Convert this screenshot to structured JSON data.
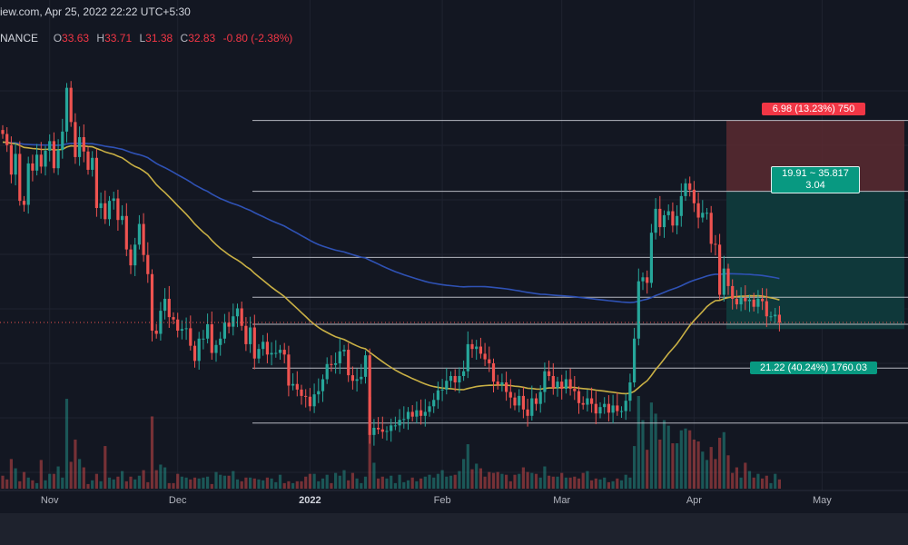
{
  "header": {
    "source_text": "iew.com, Apr 25, 2022 22:22 UTC+5:30",
    "exchange": "NANCE",
    "ohlc": {
      "open_label": "O",
      "open_value": "33.63",
      "high_label": "H",
      "high_value": "33.71",
      "low_label": "L",
      "low_value": "31.38",
      "close_label": "C",
      "close_value": "32.83",
      "change": "-0.80 (-2.38%)"
    }
  },
  "position_tool": {
    "target_label": "6.98 (13.23%) 750",
    "ratio_line1": "19.91 ~ 35.817",
    "ratio_line2": "3.04",
    "stop_label": "21.22 (40.24%) 1760.03"
  },
  "colors": {
    "background": "#131722",
    "up": "#26a69a",
    "down": "#ef5350",
    "ma_fast": "#c9b045",
    "ma_slow": "#2f52b5",
    "hline": "#d1d4dc",
    "target_zone": "#5a2a30",
    "stop_zone": "#0f3a3c",
    "grid": "#1f2330"
  },
  "chart_data": {
    "type": "candlestick",
    "x_axis_labels": [
      "Nov",
      "Dec",
      "2022",
      "Feb",
      "Mar",
      "Apr",
      "May"
    ],
    "x_axis_label_dates": [
      "2021-11-01",
      "2021-12-01",
      "2022-01-01",
      "2022-02-01",
      "2022-03-01",
      "2022-04-01",
      "2022-05-01"
    ],
    "first_candle_date": "2021-10-21",
    "last_candle_date": "2022-04-25",
    "approx_price_range": [
      15,
      60
    ],
    "last_close": 32.83,
    "closes": [
      56.5,
      55.1,
      51.4,
      54.0,
      48.1,
      47.6,
      52.8,
      51.9,
      53.9,
      52.4,
      54.4,
      55.6,
      52.2,
      54.5,
      56.8,
      62.3,
      58.0,
      53.6,
      56.1,
      54.3,
      52.0,
      53.5,
      47.2,
      47.8,
      45.8,
      48.1,
      48.4,
      45.7,
      46.2,
      42.0,
      40.0,
      42.6,
      45.2,
      41.3,
      38.9,
      31.8,
      31.4,
      34.3,
      35.8,
      33.5,
      33.2,
      31.8,
      32.0,
      32.1,
      29.9,
      28.0,
      30.8,
      30.8,
      32.6,
      29.0,
      30.0,
      30.8,
      32.8,
      32.3,
      33.6,
      34.6,
      32.4,
      30.1,
      32.2,
      28.3,
      29.5,
      30.4,
      28.8,
      29.0,
      29.0,
      29.4,
      28.8,
      24.9,
      25.1,
      24.4,
      23.6,
      23.5,
      22.3,
      23.8,
      24.2,
      25.7,
      27.6,
      27.5,
      27.7,
      29.2,
      29.4,
      26.2,
      25.5,
      25.7,
      26.0,
      28.7,
      18.7,
      19.6,
      19.4,
      19.1,
      19.2,
      19.9,
      19.9,
      20.6,
      20.7,
      21.6,
      21.0,
      21.8,
      21.1,
      21.6,
      22.3,
      23.1,
      24.3,
      24.4,
      25.5,
      26.1,
      25.3,
      26.1,
      26.7,
      30.1,
      29.5,
      29.8,
      28.9,
      28.2,
      27.7,
      25.4,
      25.0,
      25.3,
      24.1,
      23.4,
      22.4,
      23.6,
      21.9,
      21.1,
      23.3,
      22.6,
      24.1,
      26.7,
      26.1,
      24.6,
      25.4,
      24.5,
      25.7,
      24.5,
      24.2,
      22.7,
      22.5,
      23.3,
      22.6,
      21.4,
      22.2,
      22.6,
      21.5,
      22.4,
      21.7,
      21.7,
      23.0,
      25.3,
      30.8,
      38.0,
      38.5,
      37.8,
      44.1,
      47.1,
      44.8,
      46.3,
      46.8,
      45.0,
      46.2,
      48.7,
      50.3,
      49.5,
      47.8,
      46.0,
      46.6,
      46.6,
      42.7,
      42.6,
      36.3,
      39.6,
      37.4,
      35.8,
      35.1,
      35.9,
      35.5,
      35.7,
      34.8,
      35.8,
      35.5,
      33.6,
      33.6,
      33.8,
      32.8
    ],
    "volume_relative": [
      0.14,
      0.1,
      0.32,
      0.22,
      0.08,
      0.18,
      0.12,
      0.09,
      0.06,
      0.31,
      0.09,
      0.16,
      0.16,
      0.24,
      0.12,
      0.97,
      0.29,
      0.53,
      0.32,
      0.23,
      0.05,
      0.09,
      0.16,
      0.08,
      0.46,
      0.12,
      0.1,
      0.13,
      0.19,
      0.08,
      0.13,
      0.1,
      0.14,
      0.2,
      0.07,
      0.78,
      0.2,
      0.26,
      0.23,
      0.06,
      0.06,
      0.16,
      0.13,
      0.12,
      0.1,
      0.12,
      0.11,
      0.12,
      0.13,
      0.05,
      0.18,
      0.15,
      0.14,
      0.14,
      0.19,
      0.1,
      0.08,
      0.12,
      0.12,
      0.11,
      0.1,
      0.09,
      0.12,
      0.11,
      0.07,
      0.15,
      0.06,
      0.08,
      0.06,
      0.08,
      0.08,
      0.13,
      0.16,
      0.16,
      0.08,
      0.11,
      0.15,
      0.06,
      0.17,
      0.14,
      0.2,
      0.09,
      0.17,
      0.11,
      0.06,
      0.13,
      0.99,
      0.28,
      0.11,
      0.13,
      0.11,
      0.14,
      0.06,
      0.15,
      0.07,
      0.09,
      0.12,
      0.08,
      0.11,
      0.13,
      0.15,
      0.12,
      0.16,
      0.2,
      0.13,
      0.14,
      0.15,
      0.19,
      0.32,
      0.48,
      0.21,
      0.27,
      0.22,
      0.13,
      0.18,
      0.17,
      0.18,
      0.16,
      0.15,
      0.08,
      0.15,
      0.16,
      0.23,
      0.18,
      0.17,
      0.16,
      0.12,
      0.24,
      0.14,
      0.13,
      0.13,
      0.17,
      0.12,
      0.12,
      0.13,
      0.11,
      0.17,
      0.19,
      0.09,
      0.11,
      0.1,
      0.12,
      0.07,
      0.08,
      0.11,
      0.09,
      0.15,
      0.12,
      0.46,
      1.0,
      0.74,
      0.42,
      0.93,
      0.81,
      0.53,
      0.74,
      0.68,
      0.49,
      0.49,
      0.63,
      0.65,
      0.63,
      0.53,
      0.51,
      0.4,
      0.31,
      0.45,
      0.32,
      0.55,
      0.61,
      0.36,
      0.17,
      0.23,
      0.12,
      0.28,
      0.19,
      0.12,
      0.16,
      0.11,
      0.14,
      0.06,
      0.16,
      0.1
    ],
    "moving_average_fast": {
      "type": "SMA",
      "color": "#c9b045",
      "values": [
        55.48,
        55.45,
        55.31,
        55.28,
        55.05,
        54.81,
        54.75,
        54.67,
        54.64,
        54.56,
        54.56,
        54.59,
        54.5,
        54.5,
        54.58,
        54.86,
        55.0,
        54.96,
        55.01,
        54.99,
        54.92,
        54.89,
        54.67,
        54.48,
        54.24,
        54.09,
        53.94,
        53.71,
        53.5,
        53.14,
        52.73,
        52.42,
        52.2,
        51.86,
        51.47,
        50.81,
        50.15,
        49.62,
        49.15,
        48.6,
        48.07,
        47.5,
        46.96,
        46.43,
        45.83,
        45.19,
        44.67,
        44.16,
        43.73,
        43.13,
        42.61,
        42.13,
        41.73,
        41.32,
        40.97,
        40.67,
        40.3,
        39.86,
        39.51,
        39.0,
        38.55,
        38.13,
        37.69,
        37.26,
        36.86,
        36.48,
        36.08,
        35.56,
        35.07,
        34.57,
        34.06,
        33.57,
        33.05,
        32.6,
        32.2,
        31.86,
        31.57,
        31.29,
        31.04,
        30.85,
        30.68,
        30.41,
        30.14,
        29.89,
        29.66,
        29.52,
        29.08,
        28.69,
        28.29,
        27.9,
        27.52,
        27.18,
        26.85,
        26.56,
        26.28,
        26.04,
        25.78,
        25.56,
        25.31,
        25.1,
        24.91,
        24.77,
        24.68,
        24.59,
        24.54,
        24.51,
        24.44,
        24.4,
        24.39,
        24.54,
        24.66,
        24.78,
        24.86,
        24.9,
        24.93,
        24.95,
        24.96,
        24.97,
        24.95,
        24.9,
        24.82,
        24.78,
        24.69,
        24.57,
        24.53,
        24.47,
        24.46,
        24.54,
        24.6,
        24.6,
        24.64,
        24.64,
        24.68,
        24.68,
        24.66,
        24.58,
        24.52,
        24.48,
        24.42,
        24.33,
        24.26,
        24.21,
        24.13,
        24.07,
        23.99,
        23.91,
        23.88,
        23.93,
        24.18,
        24.63,
        25.09,
        25.5,
        26.17,
        26.92,
        27.55,
        28.23,
        28.94,
        29.53,
        30.16,
        30.91,
        31.7,
        32.44,
        33.08,
        33.64,
        34.21,
        34.81,
        35.23,
        35.57,
        35.6,
        35.81,
        35.96,
        36.04,
        36.07,
        36.12,
        36.14,
        36.18,
        36.16,
        36.18,
        36.15,
        36.03,
        35.92,
        35.81,
        35.66
      ]
    },
    "moving_average_slow": {
      "type": "SMA",
      "color": "#2f52b5",
      "values": [
        55.45,
        55.44,
        55.39,
        55.38,
        55.3,
        55.21,
        55.18,
        55.15,
        55.14,
        55.11,
        55.11,
        55.12,
        55.09,
        55.09,
        55.12,
        55.26,
        55.32,
        55.3,
        55.33,
        55.32,
        55.29,
        55.28,
        55.18,
        55.08,
        54.96,
        54.88,
        54.81,
        54.69,
        54.58,
        54.39,
        54.18,
        54.02,
        53.9,
        53.73,
        53.52,
        53.16,
        52.8,
        52.52,
        52.27,
        51.98,
        51.69,
        51.38,
        51.08,
        50.79,
        50.46,
        50.1,
        49.81,
        49.53,
        49.29,
        48.95,
        48.66,
        48.39,
        48.17,
        47.94,
        47.74,
        47.57,
        47.36,
        47.11,
        46.91,
        46.62,
        46.36,
        46.12,
        45.86,
        45.61,
        45.38,
        45.16,
        44.93,
        44.62,
        44.33,
        44.04,
        43.74,
        43.44,
        43.13,
        42.86,
        42.62,
        42.41,
        42.24,
        42.07,
        41.91,
        41.79,
        41.68,
        41.51,
        41.34,
        41.18,
        41.03,
        40.93,
        40.66,
        40.41,
        40.16,
        39.9,
        39.66,
        39.43,
        39.21,
        39.01,
        38.82,
        38.65,
        38.47,
        38.31,
        38.14,
        37.99,
        37.85,
        37.74,
        37.65,
        37.57,
        37.5,
        37.45,
        37.39,
        37.34,
        37.3,
        37.32,
        37.33,
        37.34,
        37.34,
        37.32,
        37.29,
        37.23,
        37.17,
        37.12,
        37.05,
        36.97,
        36.88,
        36.8,
        36.7,
        36.6,
        36.52,
        36.44,
        36.38,
        36.35,
        36.31,
        36.26,
        36.22,
        36.18,
        36.15,
        36.1,
        36.06,
        35.99,
        35.93,
        35.88,
        35.82,
        35.75,
        35.69,
        35.64,
        35.57,
        35.52,
        35.46,
        35.4,
        35.36,
        35.33,
        35.37,
        35.5,
        35.64,
        35.76,
        35.96,
        36.2,
        36.39,
        36.61,
        36.83,
        37.01,
        37.21,
        37.44,
        37.69,
        37.93,
        38.13,
        38.3,
        38.48,
        38.66,
        38.79,
        38.89,
        38.87,
        38.92,
        38.95,
        38.94,
        38.92,
        38.91,
        38.88,
        38.86,
        38.81,
        38.78,
        38.73,
        38.64,
        38.55,
        38.46,
        38.35
      ]
    },
    "horizontal_levels_approx": [
      58.2,
      49.3,
      41.0,
      36.0,
      32.6,
      27.1,
      20.2
    ],
    "position": {
      "type": "long/short position tool",
      "entry_approx": 49.3,
      "target_approx": 58.2,
      "stop_approx": 32.0
    }
  }
}
